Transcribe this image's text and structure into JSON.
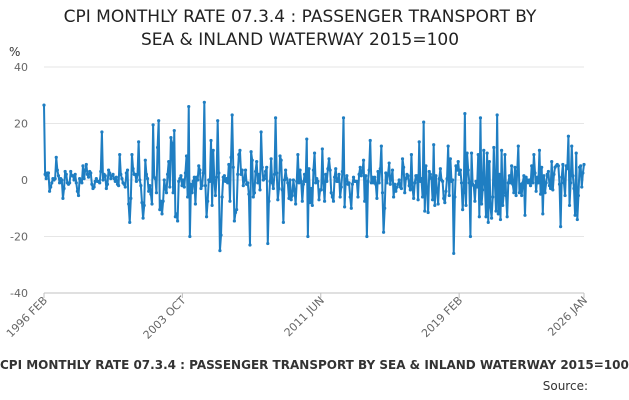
{
  "chart_data": {
    "type": "line",
    "title": "CPI MONTHLY RATE 07.3.4 : PASSENGER TRANSPORT BY SEA & INLAND WATERWAY 2015=100",
    "title_lines": [
      "CPI MONTHLY RATE 07.3.4 : PASSENGER TRANSPORT BY",
      "SEA & INLAND WATERWAY 2015=100"
    ],
    "ylabel": "%",
    "xlabel": "",
    "ylim": [
      -40,
      40
    ],
    "yticks": [
      40,
      20,
      0,
      -20,
      -40
    ],
    "x_start": "1996-02",
    "x_end": "2026-01",
    "xticks": [
      "1996 FEB",
      "2003 OCT",
      "2011 JUN",
      "2019 FEB",
      "2026 JAN"
    ],
    "grid": "horizontal",
    "legend_position": "bottom",
    "series": [
      {
        "name": "CPI MONTHLY RATE 07.3.4 : PASSENGER TRANSPORT BY SEA & INLAND WATERWAY 2015=100",
        "color": "#1f7ec2",
        "values": [
          26.5,
          2.0,
          0.5,
          2.5,
          2.5,
          -4.0,
          -2.5,
          -1.0,
          0.5,
          0.0,
          0.5,
          8.0,
          3.5,
          1.5,
          -1.0,
          0.5,
          0.0,
          -6.5,
          -3.0,
          3.0,
          2.0,
          -1.0,
          -1.5,
          -1.0,
          3.0,
          1.5,
          1.5,
          0.0,
          2.0,
          -1.0,
          -4.0,
          -5.5,
          0.5,
          -0.5,
          -1.0,
          5.0,
          0.5,
          3.5,
          5.5,
          2.0,
          1.0,
          3.0,
          2.5,
          -1.5,
          -3.0,
          -2.5,
          -0.5,
          0.5,
          -0.5,
          -0.5,
          -1.0,
          3.0,
          17.0,
          0.0,
          2.0,
          1.5,
          -3.0,
          -1.5,
          3.5,
          2.5,
          0.5,
          1.5,
          2.0,
          0.5,
          -0.5,
          1.0,
          -1.5,
          -2.0,
          9.0,
          2.0,
          0.5,
          -1.0,
          -1.5,
          -2.5,
          2.5,
          3.5,
          -8.5,
          -15.0,
          -6.5,
          9.0,
          4.0,
          2.0,
          2.0,
          -0.5,
          2.0,
          13.5,
          0.0,
          -2.0,
          -8.0,
          -13.5,
          -9.0,
          7.0,
          2.0,
          0.5,
          -4.0,
          -2.0,
          -5.0,
          -8.5,
          19.5,
          1.0,
          0.5,
          -4.5,
          11.5,
          21.0,
          -10.5,
          -7.5,
          -12.0,
          -7.5,
          0.0,
          -3.0,
          -4.5,
          2.0,
          6.5,
          -2.5,
          15.0,
          13.0,
          -4.5,
          17.5,
          -13.0,
          -12.0,
          -14.5,
          -0.5,
          0.5,
          1.5,
          -2.0,
          0.0,
          -2.5,
          2.5,
          8.5,
          -6.0,
          26.0,
          -20.0,
          -1.5,
          -4.5,
          -0.5,
          1.0,
          -8.5,
          1.0,
          0.0,
          5.0,
          3.5,
          -3.0,
          -2.0,
          2.5,
          27.5,
          -2.0,
          -13.0,
          -7.5,
          0.0,
          -0.5,
          14.0,
          -9.0,
          10.5,
          0.0,
          -5.5,
          1.0,
          21.0,
          2.5,
          -25.0,
          -19.5,
          -6.0,
          1.0,
          1.5,
          -0.5,
          0.5,
          -1.0,
          5.5,
          -7.5,
          8.0,
          23.0,
          4.5,
          -14.5,
          -11.5,
          -10.5,
          2.0,
          9.0,
          10.5,
          2.0,
          3.5,
          -2.0,
          0.0,
          3.5,
          -1.5,
          -1.0,
          -5.0,
          -23.0,
          10.0,
          7.0,
          -6.0,
          -4.5,
          3.0,
          6.5,
          -1.0,
          2.0,
          -3.5,
          17.0,
          4.5,
          0.0,
          0.5,
          3.0,
          4.5,
          -22.5,
          -7.5,
          -0.5,
          7.5,
          -1.0,
          -3.0,
          2.0,
          22.0,
          2.5,
          -7.0,
          -3.0,
          8.5,
          7.0,
          -3.5,
          -15.0,
          0.0,
          3.5,
          0.5,
          -1.0,
          -6.5,
          0.0,
          -7.0,
          -5.5,
          0.0,
          -3.5,
          -8.5,
          -0.5,
          9.0,
          -1.0,
          3.5,
          -0.5,
          -7.5,
          -1.5,
          2.0,
          -0.5,
          14.5,
          -20.0,
          4.0,
          -8.0,
          -3.0,
          -9.0,
          3.5,
          9.5,
          -1.0,
          0.5,
          -0.5,
          -7.0,
          -3.5,
          -3.5,
          11.0,
          -1.0,
          -7.5,
          2.0,
          -0.5,
          4.0,
          7.5,
          3.5,
          -4.5,
          -6.0,
          -7.5,
          1.0,
          4.0,
          -0.5,
          -0.5,
          2.0,
          -6.0,
          -2.5,
          3.0,
          22.0,
          -9.5,
          0.0,
          1.5,
          -1.5,
          -1.0,
          -6.0,
          -10.0,
          -1.5,
          1.0,
          -0.5,
          -0.5,
          -0.5,
          -6.0,
          2.0,
          4.5,
          1.5,
          3.0,
          7.0,
          -7.5,
          1.5,
          -20.0,
          -0.5,
          3.5,
          14.0,
          -1.0,
          1.0,
          -1.0,
          1.0,
          -1.5,
          -6.5,
          3.0,
          -1.0,
          4.0,
          12.0,
          -4.5,
          -18.5,
          -10.0,
          2.5,
          -1.0,
          2.0,
          6.0,
          -1.5,
          0.5,
          3.5,
          -6.0,
          -1.5,
          -4.0,
          -2.5,
          -1.5,
          0.0,
          -2.5,
          -3.0,
          7.5,
          4.5,
          -4.5,
          0.5,
          2.0,
          1.5,
          -2.0,
          -3.5,
          9.0,
          -3.0,
          -6.5,
          -1.0,
          1.5,
          1.5,
          -7.0,
          13.5,
          -0.5,
          0.5,
          -6.0,
          20.5,
          -11.0,
          5.0,
          -3.5,
          -11.5,
          3.0,
          2.0,
          0.5,
          -7.0,
          12.5,
          -9.0,
          1.5,
          -3.5,
          -8.5,
          0.5,
          4.0,
          0.0,
          -0.5,
          -6.5,
          -8.0,
          -4.0,
          0.5,
          12.0,
          -5.5,
          7.5,
          -0.5,
          0.0,
          -26.0,
          -6.0,
          5.0,
          3.5,
          6.5,
          2.0,
          3.5,
          -1.0,
          -10.5,
          -4.5,
          23.5,
          -9.0,
          9.5,
          3.5,
          -1.0,
          -20.0,
          9.5,
          -1.5,
          -2.0,
          -7.5,
          -0.5,
          -2.5,
          9.0,
          -13.0,
          22.0,
          -8.5,
          -3.5,
          10.5,
          -1.5,
          -13.0,
          9.5,
          -15.0,
          6.5,
          -9.5,
          -13.5,
          -6.0,
          11.5,
          -1.5,
          -11.0,
          23.0,
          -12.0,
          2.0,
          -14.0,
          10.5,
          -9.0,
          -4.5,
          9.0,
          -5.5,
          -13.0,
          -1.0,
          1.5,
          -1.0,
          5.0,
          -1.5,
          -4.5,
          4.5,
          -5.5,
          3.0,
          12.0,
          -4.5,
          -1.5,
          -5.5,
          -1.0,
          1.5,
          -12.5,
          1.0,
          0.0,
          -1.0,
          0.0,
          -2.0,
          5.0,
          -1.0,
          9.0,
          2.5,
          -4.0,
          1.0,
          -1.0,
          10.5,
          -5.0,
          4.5,
          -12.0,
          1.5,
          -4.5,
          -1.0,
          2.0,
          3.0,
          -2.0,
          -3.0,
          6.5,
          -3.5,
          2.0,
          4.5,
          5.0,
          5.5,
          5.0,
          -1.5,
          -16.5,
          1.0,
          5.5,
          -1.0,
          -5.5,
          5.0,
          4.0,
          15.5,
          -9.0,
          -1.0,
          12.0,
          1.5,
          -3.0,
          -12.5,
          9.5,
          -14.0,
          -5.5,
          4.5,
          5.0,
          -2.5,
          2.5,
          5.5
        ]
      }
    ],
    "source_label": "Source:"
  }
}
